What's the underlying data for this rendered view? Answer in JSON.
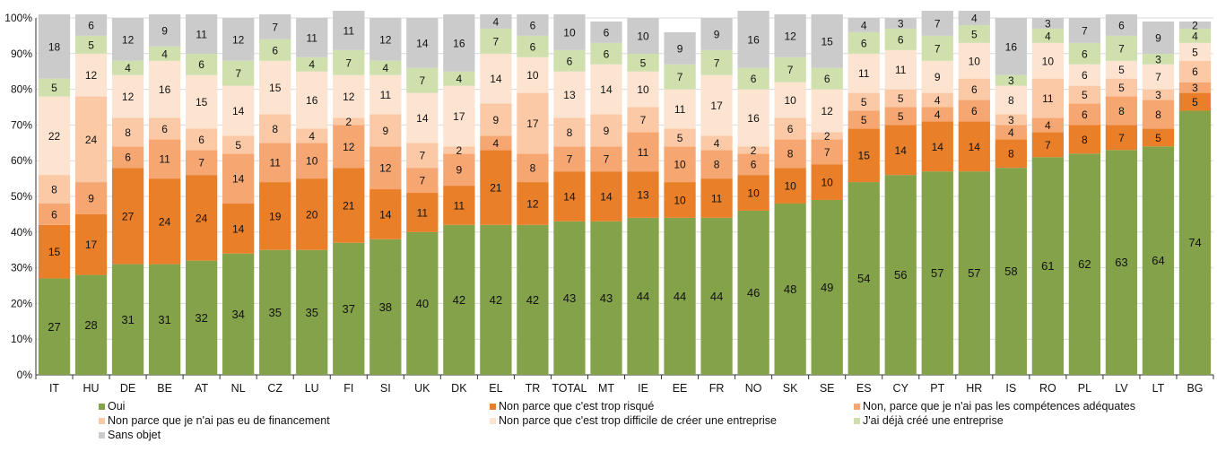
{
  "chart_data": {
    "type": "bar",
    "stacked": true,
    "normalized_percent": true,
    "title": "",
    "xlabel": "",
    "ylabel": "",
    "ylim": [
      0,
      100
    ],
    "y_ticks": [
      "0%",
      "10%",
      "20%",
      "30%",
      "40%",
      "50%",
      "60%",
      "70%",
      "80%",
      "90%",
      "100%"
    ],
    "grid": true,
    "legend_position": "bottom",
    "categories": [
      "IT",
      "HU",
      "DE",
      "BE",
      "AT",
      "NL",
      "CZ",
      "LU",
      "FI",
      "SI",
      "UK",
      "DK",
      "EL",
      "TR",
      "TOTAL",
      "MT",
      "IE",
      "EE",
      "FR",
      "NO",
      "SK",
      "SE",
      "ES",
      "CY",
      "PT",
      "HR",
      "IS",
      "RO",
      "PL",
      "LV",
      "LT",
      "BG"
    ],
    "series": [
      {
        "name": "Oui",
        "color": "#84a24a",
        "values": [
          27,
          28,
          31,
          31,
          32,
          34,
          35,
          35,
          37,
          38,
          40,
          42,
          42,
          42,
          43,
          43,
          44,
          44,
          44,
          46,
          48,
          49,
          54,
          56,
          57,
          57,
          58,
          61,
          62,
          63,
          64,
          74
        ]
      },
      {
        "name": "Non parce que c'est trop risqué",
        "color": "#ea7f2a",
        "values": [
          15,
          17,
          27,
          24,
          24,
          14,
          19,
          20,
          21,
          14,
          11,
          11,
          21,
          12,
          14,
          14,
          13,
          10,
          11,
          10,
          10,
          10,
          15,
          14,
          14,
          14,
          8,
          7,
          8,
          7,
          5,
          5
        ]
      },
      {
        "name": "Non, parce que je n'ai pas les compétences adéquates",
        "color": "#f6a671",
        "values": [
          6,
          9,
          6,
          11,
          7,
          14,
          11,
          10,
          12,
          12,
          7,
          9,
          4,
          8,
          7,
          7,
          11,
          10,
          8,
          6,
          8,
          7,
          5,
          5,
          4,
          6,
          4,
          4,
          6,
          8,
          8,
          3
        ]
      },
      {
        "name": "Non parce que je n'ai pas eu de financement",
        "color": "#fbc9a6",
        "values": [
          8,
          24,
          8,
          6,
          6,
          5,
          8,
          4,
          2,
          9,
          7,
          2,
          9,
          17,
          8,
          9,
          7,
          5,
          4,
          2,
          6,
          2,
          5,
          5,
          4,
          6,
          3,
          11,
          5,
          5,
          3,
          6
        ]
      },
      {
        "name": "Non parce que c'est trop difficile de créer une entreprise",
        "color": "#fde4d1",
        "values": [
          22,
          12,
          12,
          16,
          15,
          14,
          15,
          16,
          12,
          11,
          14,
          17,
          14,
          10,
          13,
          14,
          10,
          11,
          17,
          16,
          10,
          12,
          11,
          11,
          9,
          10,
          8,
          10,
          6,
          5,
          7,
          5
        ]
      },
      {
        "name": "J'ai déjà créé une entreprise",
        "color": "#cfe0ad",
        "values": [
          5,
          5,
          4,
          4,
          6,
          7,
          6,
          4,
          7,
          4,
          7,
          4,
          7,
          6,
          6,
          6,
          5,
          7,
          7,
          6,
          7,
          6,
          6,
          6,
          7,
          5,
          3,
          4,
          6,
          7,
          3,
          4
        ]
      },
      {
        "name": "Sans objet",
        "color": "#cbcbcb",
        "values": [
          18,
          6,
          12,
          9,
          11,
          12,
          7,
          11,
          11,
          12,
          14,
          16,
          4,
          6,
          10,
          6,
          10,
          9,
          9,
          16,
          12,
          15,
          4,
          3,
          7,
          4,
          16,
          3,
          7,
          6,
          9,
          2
        ]
      }
    ]
  }
}
